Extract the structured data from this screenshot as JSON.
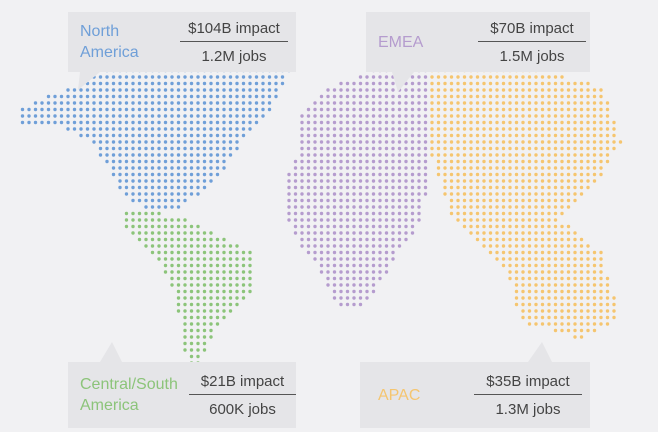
{
  "regions": [
    {
      "name": "North America",
      "impact": "$104B impact",
      "jobs": "1.2M jobs",
      "color": "#6f9fd8"
    },
    {
      "name": "EMEA",
      "impact": "$70B impact",
      "jobs": "1.5M jobs",
      "color": "#b59cce"
    },
    {
      "name": "Central/South America",
      "impact": "$21B impact",
      "jobs": "600K jobs",
      "color": "#8cc47a"
    },
    {
      "name": "APAC",
      "impact": "$35B impact",
      "jobs": "1.3M jobs",
      "color": "#f5c56f"
    }
  ]
}
